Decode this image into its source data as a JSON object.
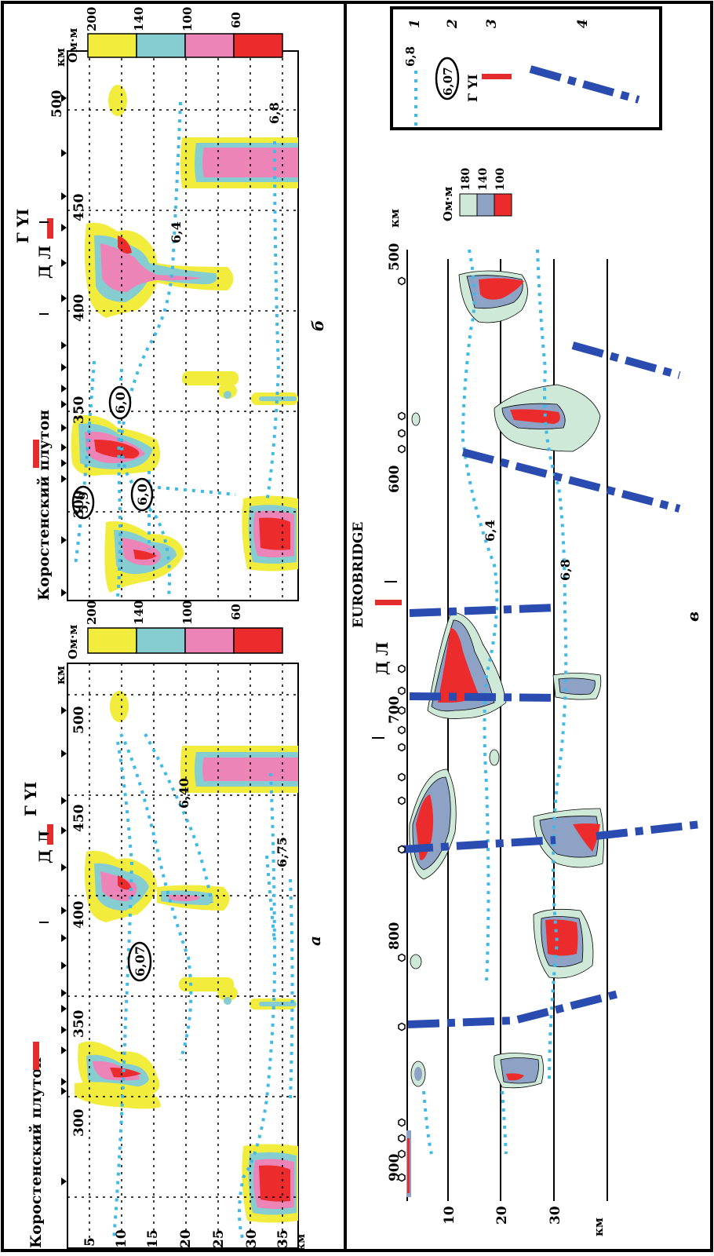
{
  "colors": {
    "yellow": "#f2ec3c",
    "cyan": "#86cdd2",
    "pink": "#ec84b8",
    "red": "#ec2c2c",
    "pale_green": "#cfe9d9",
    "grey_blue": "#8ea2c6",
    "blue_fault": "#2a4bb0",
    "dotted": "#3fb9e6",
    "station_red": "#e32c2c"
  },
  "panel_a": {
    "label": "а",
    "unit": "км",
    "distance_ticks": [
      "300",
      "350",
      "400",
      "450",
      "500"
    ],
    "depth_ticks": [
      "5",
      "10",
      "15",
      "20",
      "25",
      "30",
      "35"
    ],
    "depth_unit": "км",
    "legend_title": "Ом·м",
    "legend_values": [
      "200",
      "140",
      "100",
      "60"
    ],
    "place_labels": [
      "Коростенский плутон",
      "Д Л",
      "Г YI"
    ],
    "velocity_labels": [
      "6,40",
      "6,75",
      "6,07"
    ]
  },
  "panel_b": {
    "label": "б",
    "unit": "км",
    "distance_ticks": [
      "300",
      "350",
      "400",
      "450",
      "500"
    ],
    "legend_title": "Ом·м",
    "legend_values": [
      "200",
      "140",
      "100",
      "60"
    ],
    "place_labels": [
      "Коростенский плутон",
      "Д Л",
      "Г YI"
    ],
    "velocity_labels": [
      "6,4",
      "6,8",
      "5,9",
      "6,0",
      "6,0"
    ]
  },
  "panel_c": {
    "label": "в",
    "unit": "км",
    "distance_ticks": [
      "500",
      "600",
      "700",
      "800",
      "900"
    ],
    "depth_ticks": [
      "10",
      "20",
      "30"
    ],
    "depth_unit": "км",
    "legend_title": "Ом·м",
    "legend_values": [
      "180",
      "140",
      "100"
    ],
    "place_labels": [
      "EUROBRIDGE",
      "Д Л"
    ],
    "velocity_labels": [
      "6,4",
      "6,8"
    ]
  },
  "key": {
    "numbers": [
      "1",
      "2",
      "3",
      "4"
    ],
    "sample_velocity": "6,8",
    "sample_circled": "6,07",
    "sample_station": "Г YI"
  }
}
